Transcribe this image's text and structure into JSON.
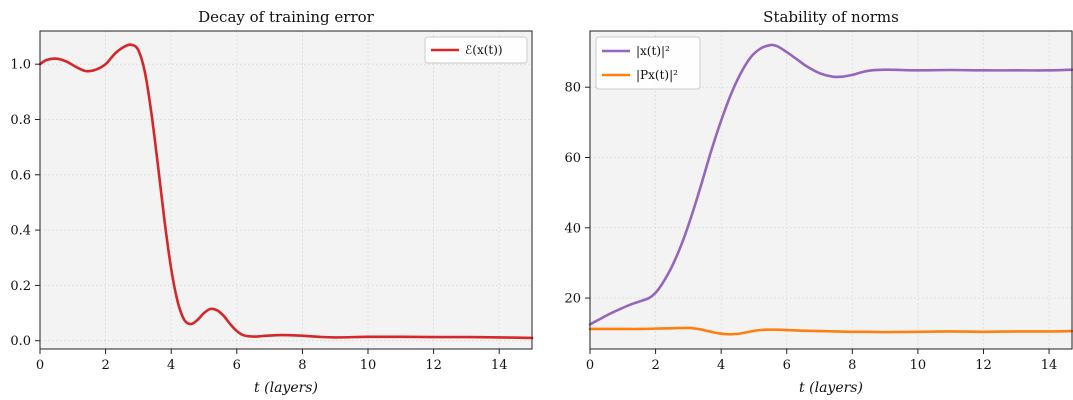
{
  "chart_data": [
    {
      "type": "line",
      "title": "Decay of training error",
      "xlabel": "t (layers)",
      "ylabel": "",
      "xlim": [
        0,
        15
      ],
      "ylim": [
        -0.03,
        1.12
      ],
      "xticks": [
        0,
        2,
        4,
        6,
        8,
        10,
        12,
        14
      ],
      "yticks": [
        0.0,
        0.2,
        0.4,
        0.6,
        0.8,
        1.0
      ],
      "ytick_labels": [
        "0.0",
        "0.2",
        "0.4",
        "0.6",
        "0.8",
        "1.0"
      ],
      "grid": true,
      "legend_position": "top-right",
      "series": [
        {
          "name": "ℰ(x(t))",
          "color": "#d62728",
          "x": [
            0,
            0.2,
            0.5,
            0.8,
            1.1,
            1.4,
            1.7,
            2.0,
            2.3,
            2.6,
            2.8,
            3.0,
            3.2,
            3.4,
            3.6,
            3.8,
            4.0,
            4.2,
            4.4,
            4.6,
            4.8,
            5.0,
            5.2,
            5.4,
            5.6,
            5.8,
            6.0,
            6.2,
            6.5,
            6.8,
            7.2,
            7.6,
            8.0,
            8.5,
            9.0,
            10.0,
            11.0,
            12.0,
            13.0,
            14.0,
            15.0
          ],
          "y": [
            1.0,
            1.015,
            1.02,
            1.01,
            0.99,
            0.975,
            0.98,
            1.0,
            1.04,
            1.065,
            1.07,
            1.05,
            0.97,
            0.82,
            0.63,
            0.43,
            0.26,
            0.14,
            0.075,
            0.06,
            0.075,
            0.1,
            0.115,
            0.11,
            0.09,
            0.06,
            0.035,
            0.02,
            0.015,
            0.017,
            0.02,
            0.02,
            0.018,
            0.014,
            0.012,
            0.014,
            0.014,
            0.013,
            0.013,
            0.012,
            0.01
          ]
        }
      ]
    },
    {
      "type": "line",
      "title": "Stability of norms",
      "xlabel": "t (layers)",
      "ylabel": "",
      "xlim": [
        0,
        14.7
      ],
      "ylim": [
        5.5,
        96
      ],
      "xticks": [
        0,
        2,
        4,
        6,
        8,
        10,
        12,
        14
      ],
      "yticks": [
        20,
        40,
        60,
        80
      ],
      "ytick_labels": [
        "20",
        "40",
        "60",
        "80"
      ],
      "grid": true,
      "legend_position": "top-left",
      "series": [
        {
          "name": "|x(t)|²",
          "color": "#9467bd",
          "x": [
            0,
            0.3,
            0.6,
            0.9,
            1.2,
            1.5,
            1.8,
            2.0,
            2.2,
            2.5,
            2.8,
            3.1,
            3.4,
            3.7,
            4.0,
            4.3,
            4.6,
            4.9,
            5.2,
            5.5,
            5.7,
            6.0,
            6.3,
            6.6,
            7.0,
            7.4,
            7.7,
            8.0,
            8.3,
            8.6,
            9.0,
            9.5,
            10.0,
            11.0,
            12.0,
            13.0,
            14.0,
            14.7
          ],
          "y": [
            12.5,
            14.0,
            15.5,
            16.8,
            18.0,
            19.0,
            20.0,
            21.5,
            24.0,
            29.0,
            35.5,
            43.5,
            52.5,
            62.0,
            70.5,
            78.0,
            84.0,
            88.5,
            91.0,
            92.0,
            91.7,
            90.0,
            88.0,
            86.0,
            84.0,
            83.0,
            83.0,
            83.5,
            84.3,
            84.8,
            85.0,
            84.9,
            84.8,
            84.9,
            84.8,
            84.8,
            84.8,
            85.0
          ]
        },
        {
          "name": "|Px(t)|²",
          "color": "#ff7f0e",
          "x": [
            0,
            0.5,
            1.0,
            1.5,
            2.0,
            2.5,
            3.0,
            3.3,
            3.6,
            3.9,
            4.2,
            4.5,
            4.8,
            5.1,
            5.4,
            5.7,
            6.0,
            6.5,
            7.0,
            7.5,
            8.0,
            8.5,
            9.0,
            10.0,
            11.0,
            12.0,
            13.0,
            14.0,
            14.7
          ],
          "y": [
            11.2,
            11.2,
            11.2,
            11.2,
            11.3,
            11.4,
            11.5,
            11.2,
            10.6,
            10.0,
            9.7,
            9.8,
            10.3,
            10.8,
            11.0,
            11.0,
            10.9,
            10.7,
            10.6,
            10.5,
            10.4,
            10.4,
            10.3,
            10.4,
            10.5,
            10.4,
            10.5,
            10.5,
            10.6
          ]
        }
      ]
    }
  ]
}
